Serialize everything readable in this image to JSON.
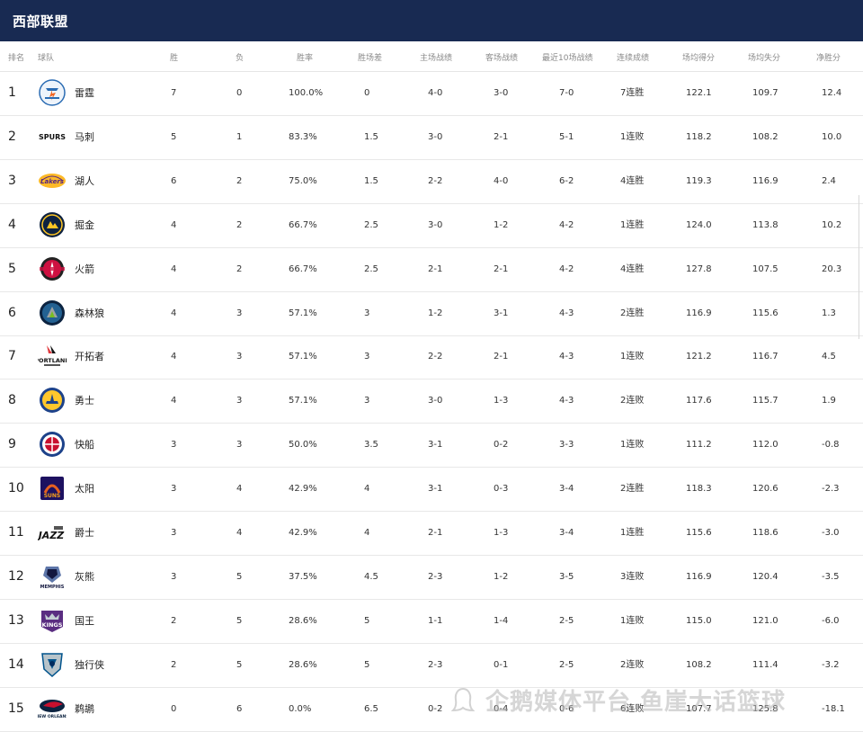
{
  "header": {
    "title": "西部联盟"
  },
  "columns": [
    "排名",
    "球队",
    "胜",
    "负",
    "胜率",
    "胜场差",
    "主场战绩",
    "客场战绩",
    "最近10场战绩",
    "连续成绩",
    "场均得分",
    "场均失分",
    "净胜分"
  ],
  "rows": [
    {
      "rank": "1",
      "logo_icon": "thunder-logo",
      "team": "雷霆",
      "w": "7",
      "l": "0",
      "pct": "100.0%",
      "gb": "0",
      "home": "4-0",
      "away": "3-0",
      "last10": "7-0",
      "streak": "7连胜",
      "ppg": "122.1",
      "oppg": "109.7",
      "diff": "12.4"
    },
    {
      "rank": "2",
      "logo_icon": "spurs-logo",
      "team": "马刺",
      "w": "5",
      "l": "1",
      "pct": "83.3%",
      "gb": "1.5",
      "home": "3-0",
      "away": "2-1",
      "last10": "5-1",
      "streak": "1连败",
      "ppg": "118.2",
      "oppg": "108.2",
      "diff": "10.0"
    },
    {
      "rank": "3",
      "logo_icon": "lakers-logo",
      "team": "湖人",
      "w": "6",
      "l": "2",
      "pct": "75.0%",
      "gb": "1.5",
      "home": "2-2",
      "away": "4-0",
      "last10": "6-2",
      "streak": "4连胜",
      "ppg": "119.3",
      "oppg": "116.9",
      "diff": "2.4"
    },
    {
      "rank": "4",
      "logo_icon": "nuggets-logo",
      "team": "掘金",
      "w": "4",
      "l": "2",
      "pct": "66.7%",
      "gb": "2.5",
      "home": "3-0",
      "away": "1-2",
      "last10": "4-2",
      "streak": "1连胜",
      "ppg": "124.0",
      "oppg": "113.8",
      "diff": "10.2"
    },
    {
      "rank": "5",
      "logo_icon": "rockets-logo",
      "team": "火箭",
      "w": "4",
      "l": "2",
      "pct": "66.7%",
      "gb": "2.5",
      "home": "2-1",
      "away": "2-1",
      "last10": "4-2",
      "streak": "4连胜",
      "ppg": "127.8",
      "oppg": "107.5",
      "diff": "20.3"
    },
    {
      "rank": "6",
      "logo_icon": "timberwolves-logo",
      "team": "森林狼",
      "w": "4",
      "l": "3",
      "pct": "57.1%",
      "gb": "3",
      "home": "1-2",
      "away": "3-1",
      "last10": "4-3",
      "streak": "2连胜",
      "ppg": "116.9",
      "oppg": "115.6",
      "diff": "1.3"
    },
    {
      "rank": "7",
      "logo_icon": "trailblazers-logo",
      "team": "开拓者",
      "w": "4",
      "l": "3",
      "pct": "57.1%",
      "gb": "3",
      "home": "2-2",
      "away": "2-1",
      "last10": "4-3",
      "streak": "1连败",
      "ppg": "121.2",
      "oppg": "116.7",
      "diff": "4.5"
    },
    {
      "rank": "8",
      "logo_icon": "warriors-logo",
      "team": "勇士",
      "w": "4",
      "l": "3",
      "pct": "57.1%",
      "gb": "3",
      "home": "3-0",
      "away": "1-3",
      "last10": "4-3",
      "streak": "2连败",
      "ppg": "117.6",
      "oppg": "115.7",
      "diff": "1.9"
    },
    {
      "rank": "9",
      "logo_icon": "clippers-logo",
      "team": "快船",
      "w": "3",
      "l": "3",
      "pct": "50.0%",
      "gb": "3.5",
      "home": "3-1",
      "away": "0-2",
      "last10": "3-3",
      "streak": "1连败",
      "ppg": "111.2",
      "oppg": "112.0",
      "diff": "-0.8"
    },
    {
      "rank": "10",
      "logo_icon": "suns-logo",
      "team": "太阳",
      "w": "3",
      "l": "4",
      "pct": "42.9%",
      "gb": "4",
      "home": "3-1",
      "away": "0-3",
      "last10": "3-4",
      "streak": "2连胜",
      "ppg": "118.3",
      "oppg": "120.6",
      "diff": "-2.3"
    },
    {
      "rank": "11",
      "logo_icon": "jazz-logo",
      "team": "爵士",
      "w": "3",
      "l": "4",
      "pct": "42.9%",
      "gb": "4",
      "home": "2-1",
      "away": "1-3",
      "last10": "3-4",
      "streak": "1连胜",
      "ppg": "115.6",
      "oppg": "118.6",
      "diff": "-3.0"
    },
    {
      "rank": "12",
      "logo_icon": "grizzlies-logo",
      "team": "灰熊",
      "w": "3",
      "l": "5",
      "pct": "37.5%",
      "gb": "4.5",
      "home": "2-3",
      "away": "1-2",
      "last10": "3-5",
      "streak": "3连败",
      "ppg": "116.9",
      "oppg": "120.4",
      "diff": "-3.5"
    },
    {
      "rank": "13",
      "logo_icon": "kings-logo",
      "team": "国王",
      "w": "2",
      "l": "5",
      "pct": "28.6%",
      "gb": "5",
      "home": "1-1",
      "away": "1-4",
      "last10": "2-5",
      "streak": "1连败",
      "ppg": "115.0",
      "oppg": "121.0",
      "diff": "-6.0"
    },
    {
      "rank": "14",
      "logo_icon": "mavericks-logo",
      "team": "独行侠",
      "w": "2",
      "l": "5",
      "pct": "28.6%",
      "gb": "5",
      "home": "2-3",
      "away": "0-1",
      "last10": "2-5",
      "streak": "2连败",
      "ppg": "108.2",
      "oppg": "111.4",
      "diff": "-3.2"
    },
    {
      "rank": "15",
      "logo_icon": "pelicans-logo",
      "team": "鹈鹕",
      "w": "0",
      "l": "6",
      "pct": "0.0%",
      "gb": "6.5",
      "home": "0-2",
      "away": "0-4",
      "last10": "0-6",
      "streak": "6连败",
      "ppg": "107.7",
      "oppg": "125.8",
      "diff": "-18.1"
    }
  ],
  "watermark": "企鹅媒体平台 鱼崖大话篮球",
  "colors": {
    "header_bg": "#182a52",
    "header_text": "#ffffff",
    "row_border": "#e8e8e8"
  }
}
